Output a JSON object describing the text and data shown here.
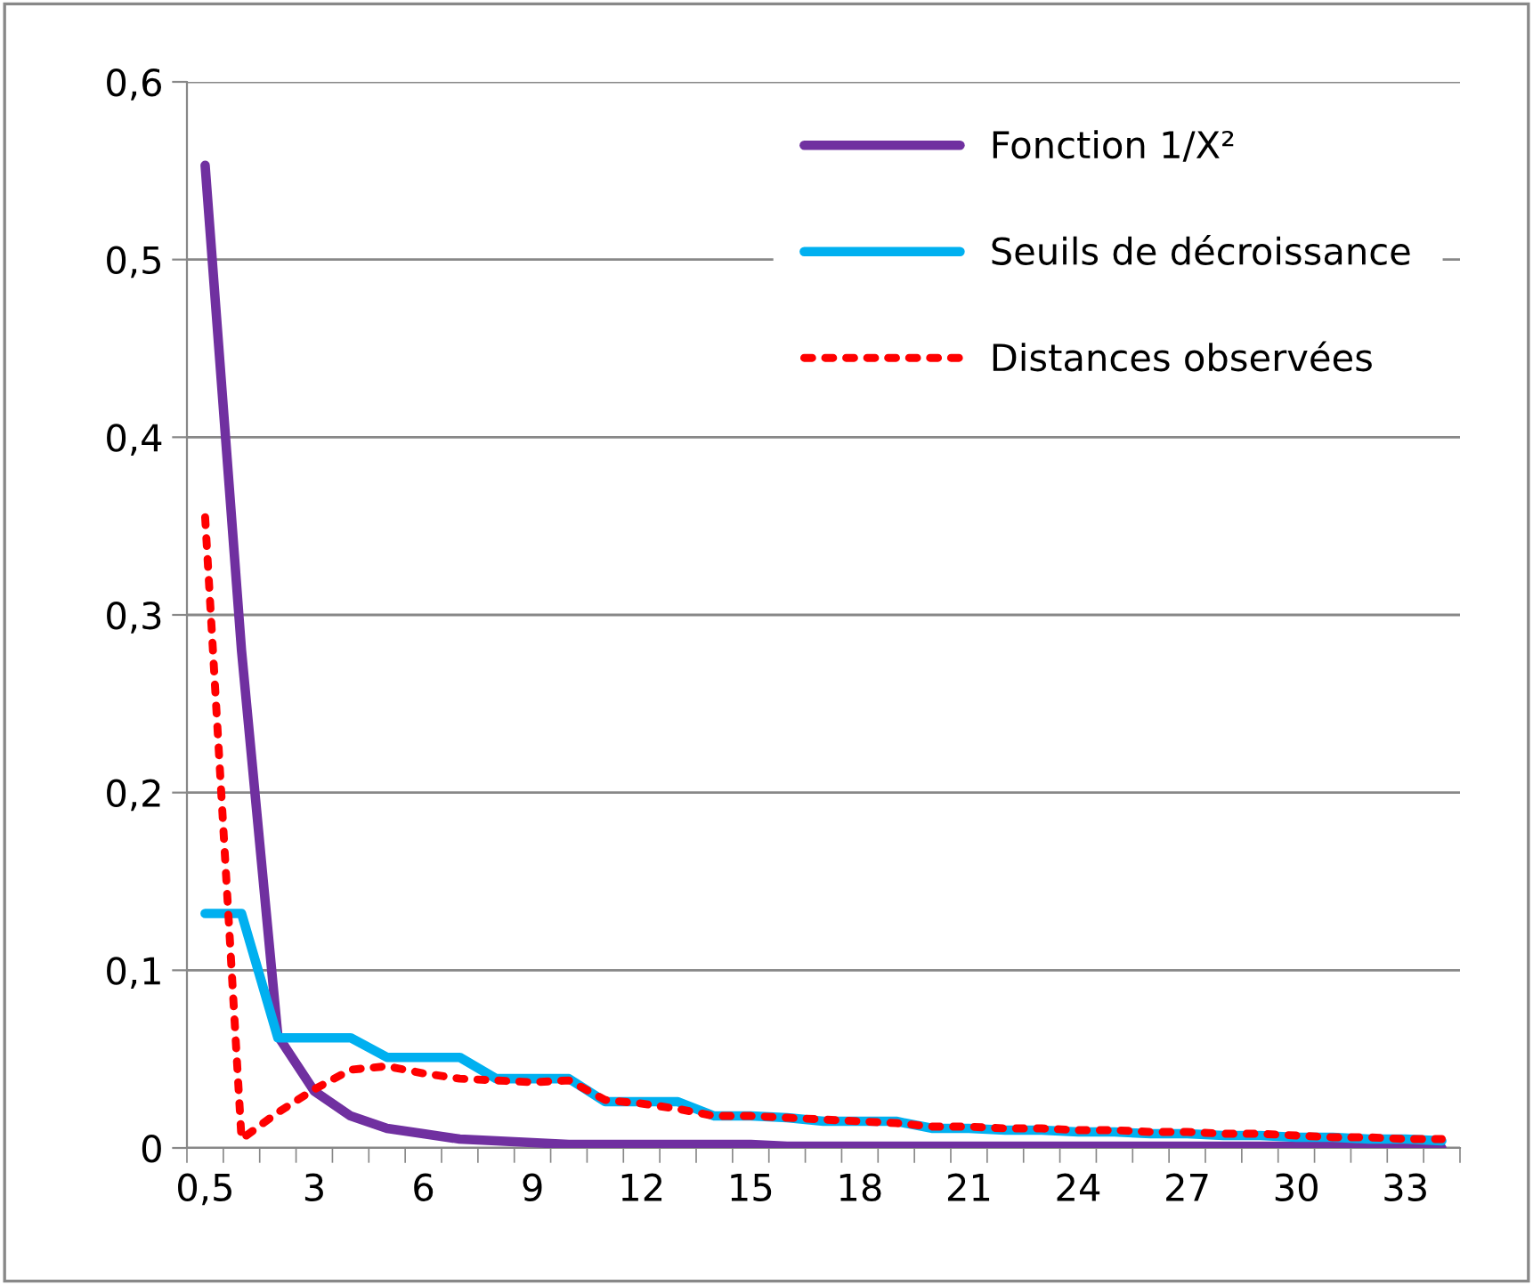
{
  "chart_data": {
    "type": "line",
    "categories": [
      "0,5",
      null,
      null,
      "3",
      null,
      null,
      "6",
      null,
      null,
      "9",
      null,
      null,
      "12",
      null,
      null,
      "15",
      null,
      null,
      "18",
      null,
      null,
      "21",
      null,
      null,
      "24",
      null,
      null,
      "27",
      null,
      null,
      "30",
      null,
      null,
      "33",
      null
    ],
    "series": [
      {
        "name": "Fonction 1/X²",
        "color": "#7030a0",
        "line_style": "solid",
        "values": [
          0.553,
          0.28,
          0.063,
          0.032,
          0.018,
          0.011,
          0.008,
          0.005,
          0.004,
          0.003,
          0.002,
          0.002,
          0.002,
          0.002,
          0.002,
          0.002,
          0.001,
          0.001,
          0.001,
          0.001,
          0.001,
          0.001,
          0.001,
          0.001,
          0.001,
          0.001,
          0.001,
          0.001,
          0.001,
          0.001,
          0.001,
          0.001,
          0.001,
          0.001,
          0.0
        ]
      },
      {
        "name": "Seuils de décroissance",
        "color": "#00b0f0",
        "line_style": "solid",
        "values": [
          0.132,
          0.132,
          0.062,
          0.062,
          0.062,
          0.051,
          0.051,
          0.051,
          0.039,
          0.039,
          0.039,
          0.026,
          0.026,
          0.026,
          0.018,
          0.018,
          0.017,
          0.015,
          0.015,
          0.015,
          0.011,
          0.011,
          0.01,
          0.01,
          0.009,
          0.009,
          0.008,
          0.008,
          0.007,
          0.007,
          0.006,
          0.006,
          0.005,
          0.005,
          0.004
        ]
      },
      {
        "name": "Distances observées",
        "color": "#ff0000",
        "line_style": "dotted",
        "values": [
          0.355,
          0.005,
          0.02,
          0.033,
          0.044,
          0.046,
          0.042,
          0.039,
          0.038,
          0.037,
          0.038,
          0.027,
          0.025,
          0.022,
          0.018,
          0.018,
          0.017,
          0.016,
          0.015,
          0.014,
          0.012,
          0.012,
          0.011,
          0.011,
          0.01,
          0.01,
          0.009,
          0.009,
          0.008,
          0.008,
          0.007,
          0.006,
          0.006,
          0.005,
          0.005
        ]
      }
    ],
    "ylim": [
      0,
      0.6
    ],
    "yticks": [
      0,
      {
        "value": 0.1,
        "label": "0,1"
      },
      {
        "value": 0.2,
        "label": "0,2"
      },
      {
        "value": 0.3,
        "label": "0,3"
      },
      {
        "value": 0.4,
        "label": "0,4"
      },
      {
        "value": 0.5,
        "label": "0,5"
      },
      {
        "value": 0.6,
        "label": "0,6"
      }
    ],
    "grid": "y",
    "legend": "top right",
    "marker": "none"
  }
}
